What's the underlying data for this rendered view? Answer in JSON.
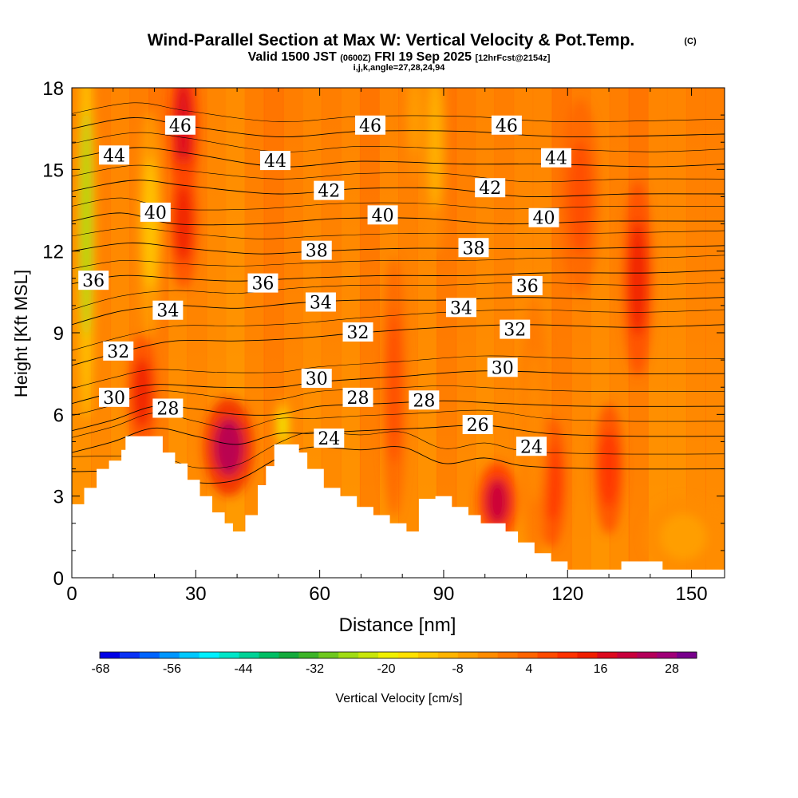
{
  "chart_data": {
    "type": "heatmap",
    "title": "Wind-Parallel Section at Max W: Vertical Velocity & Pot.Temp.",
    "title_mark": "(C)",
    "subtitle": {
      "valid_prefix": "Valid 1500 JST",
      "utc": "(0600Z)",
      "date": "FRI 19 Sep 2025",
      "forecast": "[12hrFcst@2154z]"
    },
    "params": "i,j,k,angle=27,28,24,94",
    "xlabel": "Distance [nm]",
    "ylabel": "Height [Kft MSL]",
    "xlim": [
      0,
      158
    ],
    "ylim": [
      0,
      18
    ],
    "x_ticks": [
      "0",
      "30",
      "60",
      "90",
      "120",
      "150"
    ],
    "y_ticks": [
      "0",
      "3",
      "6",
      "9",
      "12",
      "15",
      "18"
    ],
    "colorbar": {
      "label": "Vertical Velocity [cm/s]",
      "tick_labels": [
        "-68",
        "-56",
        "-44",
        "-32",
        "-20",
        "-8",
        "4",
        "16",
        "28"
      ],
      "colors": [
        "#0000e6",
        "#0a32f5",
        "#0064ff",
        "#0096ff",
        "#00c8ff",
        "#00f0ff",
        "#00e6c8",
        "#00d296",
        "#00be64",
        "#14aa3c",
        "#3cb428",
        "#6ec81e",
        "#a0dc14",
        "#c8e60a",
        "#f0f000",
        "#ffe100",
        "#ffc800",
        "#ffb400",
        "#ffa000",
        "#ff8c00",
        "#ff7800",
        "#ff6400",
        "#ff4b00",
        "#ff3200",
        "#f01e00",
        "#dc0a1e",
        "#c8003c",
        "#b4005a",
        "#a00078",
        "#78008c"
      ]
    },
    "terrain": [
      {
        "x": 0,
        "h": 2.7
      },
      {
        "x": 3,
        "h": 3.3
      },
      {
        "x": 6,
        "h": 4.0
      },
      {
        "x": 9,
        "h": 4.3
      },
      {
        "x": 12,
        "h": 4.7
      },
      {
        "x": 13,
        "h": 5.2
      },
      {
        "x": 17,
        "h": 5.2
      },
      {
        "x": 20,
        "h": 5.2
      },
      {
        "x": 22,
        "h": 4.6
      },
      {
        "x": 25,
        "h": 4.2
      },
      {
        "x": 28,
        "h": 3.6
      },
      {
        "x": 31,
        "h": 3.0
      },
      {
        "x": 34,
        "h": 2.4
      },
      {
        "x": 37,
        "h": 2.0
      },
      {
        "x": 39,
        "h": 1.7
      },
      {
        "x": 42,
        "h": 2.3
      },
      {
        "x": 45,
        "h": 3.4
      },
      {
        "x": 47,
        "h": 4.1
      },
      {
        "x": 49,
        "h": 4.9
      },
      {
        "x": 53,
        "h": 4.9
      },
      {
        "x": 55,
        "h": 4.6
      },
      {
        "x": 57,
        "h": 4.0
      },
      {
        "x": 61,
        "h": 3.3
      },
      {
        "x": 65,
        "h": 3.0
      },
      {
        "x": 69,
        "h": 2.6
      },
      {
        "x": 73,
        "h": 2.3
      },
      {
        "x": 77,
        "h": 2.0
      },
      {
        "x": 81,
        "h": 1.7
      },
      {
        "x": 84,
        "h": 2.9
      },
      {
        "x": 88,
        "h": 3.0
      },
      {
        "x": 92,
        "h": 2.6
      },
      {
        "x": 96,
        "h": 2.3
      },
      {
        "x": 99,
        "h": 2.0
      },
      {
        "x": 105,
        "h": 1.7
      },
      {
        "x": 108,
        "h": 1.3
      },
      {
        "x": 112,
        "h": 0.9
      },
      {
        "x": 116,
        "h": 0.6
      },
      {
        "x": 120,
        "h": 0.3
      },
      {
        "x": 133,
        "h": 0.6
      },
      {
        "x": 143,
        "h": 0.3
      },
      {
        "x": 158,
        "h": 0.3
      }
    ],
    "updrafts": [
      {
        "x": 27,
        "y": 16.5,
        "sx": 3,
        "sy": 2.5,
        "v": 16
      },
      {
        "x": 27,
        "y": 13,
        "sx": 3,
        "sy": 2,
        "v": 12
      },
      {
        "x": 38,
        "y": 4.8,
        "sx": 5,
        "sy": 1.5,
        "v": 22
      },
      {
        "x": 17,
        "y": 6.8,
        "sx": 3,
        "sy": 1.8,
        "v": 13
      },
      {
        "x": 103,
        "y": 2.8,
        "sx": 4,
        "sy": 1.2,
        "v": 18
      },
      {
        "x": 116,
        "y": 3.5,
        "sx": 3,
        "sy": 2,
        "v": 9
      },
      {
        "x": 130,
        "y": 4,
        "sx": 3,
        "sy": 2,
        "v": 10
      },
      {
        "x": 137,
        "y": 11,
        "sx": 3,
        "sy": 3,
        "v": 12
      },
      {
        "x": 78,
        "y": 7,
        "sx": 2.5,
        "sy": 4,
        "v": 7
      },
      {
        "x": 123,
        "y": 14,
        "sx": 4,
        "sy": 3,
        "v": 7
      }
    ],
    "downdrafts": [
      {
        "x": 3.5,
        "y": 13,
        "sx": 1.8,
        "sy": 6,
        "v": -30
      },
      {
        "x": 19,
        "y": 13,
        "sx": 2.5,
        "sy": 3.5,
        "v": -14
      },
      {
        "x": 51,
        "y": 5.6,
        "sx": 1.5,
        "sy": 0.8,
        "v": -22
      },
      {
        "x": 88,
        "y": 16,
        "sx": 2.5,
        "sy": 3.5,
        "v": -12
      },
      {
        "x": 83,
        "y": 17,
        "sx": 2,
        "sy": 2,
        "v": -9
      },
      {
        "x": 148,
        "y": 1.5,
        "sx": 8,
        "sy": 1.2,
        "v": -9
      },
      {
        "x": 112,
        "y": 5.5,
        "sx": 3,
        "sy": 4,
        "v": -6
      }
    ],
    "contours": [
      {
        "theta": 24,
        "points": [
          [
            0,
            3.9
          ],
          [
            20,
            3.9
          ],
          [
            30,
            3.5
          ],
          [
            40,
            3.6
          ],
          [
            50,
            4.4
          ],
          [
            58,
            4.8
          ],
          [
            70,
            4.7
          ],
          [
            80,
            4.8
          ],
          [
            90,
            4.2
          ],
          [
            100,
            4.4
          ],
          [
            110,
            4.1
          ],
          [
            130,
            4.0
          ],
          [
            158,
            4.0
          ]
        ]
      },
      {
        "theta": 26,
        "points": [
          [
            0,
            4.6
          ],
          [
            10,
            5.0
          ],
          [
            20,
            5.5
          ],
          [
            30,
            5.2
          ],
          [
            40,
            4.9
          ],
          [
            50,
            5.3
          ],
          [
            58,
            5.3
          ],
          [
            70,
            5.4
          ],
          [
            85,
            5.5
          ],
          [
            100,
            5.6
          ],
          [
            115,
            5.3
          ],
          [
            135,
            5.2
          ],
          [
            158,
            5.2
          ]
        ]
      },
      {
        "theta": 28,
        "points": [
          [
            0,
            5.4
          ],
          [
            10,
            5.8
          ],
          [
            20,
            6.3
          ],
          [
            30,
            6.2
          ],
          [
            40,
            6.0
          ],
          [
            50,
            6.0
          ],
          [
            60,
            6.3
          ],
          [
            75,
            6.4
          ],
          [
            90,
            6.5
          ],
          [
            105,
            6.4
          ],
          [
            125,
            6.3
          ],
          [
            158,
            6.3
          ]
        ]
      },
      {
        "theta": 30,
        "points": [
          [
            0,
            6.4
          ],
          [
            10,
            6.8
          ],
          [
            20,
            7.1
          ],
          [
            35,
            7.0
          ],
          [
            50,
            7.0
          ],
          [
            60,
            7.2
          ],
          [
            80,
            7.4
          ],
          [
            100,
            7.6
          ],
          [
            125,
            7.5
          ],
          [
            158,
            7.5
          ]
        ]
      },
      {
        "theta": 32,
        "points": [
          [
            0,
            7.8
          ],
          [
            12,
            8.3
          ],
          [
            25,
            8.7
          ],
          [
            40,
            8.7
          ],
          [
            55,
            8.8
          ],
          [
            70,
            9.0
          ],
          [
            90,
            9.2
          ],
          [
            110,
            9.3
          ],
          [
            135,
            9.2
          ],
          [
            158,
            9.3
          ]
        ]
      },
      {
        "theta": 34,
        "points": [
          [
            0,
            9.3
          ],
          [
            12,
            9.8
          ],
          [
            25,
            10.0
          ],
          [
            40,
            9.9
          ],
          [
            55,
            10.1
          ],
          [
            70,
            10.2
          ],
          [
            90,
            10.2
          ],
          [
            110,
            10.3
          ],
          [
            135,
            10.2
          ],
          [
            158,
            10.3
          ]
        ]
      },
      {
        "theta": 36,
        "points": [
          [
            0,
            10.8
          ],
          [
            12,
            11.1
          ],
          [
            25,
            11.0
          ],
          [
            40,
            10.9
          ],
          [
            55,
            11.0
          ],
          [
            75,
            11.1
          ],
          [
            95,
            11.1
          ],
          [
            115,
            11.2
          ],
          [
            140,
            11.2
          ],
          [
            158,
            11.3
          ]
        ]
      },
      {
        "theta": 38,
        "points": [
          [
            0,
            12.0
          ],
          [
            14,
            12.3
          ],
          [
            28,
            12.1
          ],
          [
            45,
            11.9
          ],
          [
            60,
            12.0
          ],
          [
            80,
            12.1
          ],
          [
            100,
            12.1
          ],
          [
            125,
            12.1
          ],
          [
            158,
            12.2
          ]
        ]
      },
      {
        "theta": 40,
        "points": [
          [
            0,
            13.1
          ],
          [
            12,
            13.4
          ],
          [
            25,
            13.0
          ],
          [
            45,
            13.0
          ],
          [
            65,
            13.2
          ],
          [
            85,
            13.2
          ],
          [
            105,
            13.0
          ],
          [
            130,
            13.1
          ],
          [
            158,
            13.1
          ]
        ]
      },
      {
        "theta": 42,
        "points": [
          [
            0,
            14.2
          ],
          [
            15,
            14.6
          ],
          [
            28,
            14.4
          ],
          [
            50,
            14.1
          ],
          [
            70,
            14.3
          ],
          [
            90,
            14.3
          ],
          [
            110,
            14.0
          ],
          [
            135,
            14.1
          ],
          [
            158,
            14.1
          ]
        ]
      },
      {
        "theta": 44,
        "points": [
          [
            0,
            15.4
          ],
          [
            15,
            15.8
          ],
          [
            28,
            15.6
          ],
          [
            50,
            15.1
          ],
          [
            70,
            15.3
          ],
          [
            95,
            15.2
          ],
          [
            115,
            15.2
          ],
          [
            140,
            15.1
          ],
          [
            158,
            15.2
          ]
        ]
      },
      {
        "theta": 46,
        "points": [
          [
            0,
            16.5
          ],
          [
            15,
            16.9
          ],
          [
            28,
            16.6
          ],
          [
            50,
            16.2
          ],
          [
            70,
            16.4
          ],
          [
            95,
            16.4
          ],
          [
            120,
            16.2
          ],
          [
            158,
            16.3
          ]
        ]
      }
    ],
    "contour_labels": [
      {
        "text": "46",
        "x": 22,
        "y": 16.6
      },
      {
        "text": "46",
        "x": 68,
        "y": 16.6
      },
      {
        "text": "46",
        "x": 101,
        "y": 16.6
      },
      {
        "text": "44",
        "x": 6,
        "y": 15.5
      },
      {
        "text": "44",
        "x": 45,
        "y": 15.3
      },
      {
        "text": "44",
        "x": 113,
        "y": 15.4
      },
      {
        "text": "42",
        "x": 58,
        "y": 14.2
      },
      {
        "text": "42",
        "x": 97,
        "y": 14.3
      },
      {
        "text": "40",
        "x": 16,
        "y": 13.4
      },
      {
        "text": "40",
        "x": 71,
        "y": 13.3
      },
      {
        "text": "40",
        "x": 110,
        "y": 13.2
      },
      {
        "text": "38",
        "x": 55,
        "y": 12.0
      },
      {
        "text": "38",
        "x": 93,
        "y": 12.1
      },
      {
        "text": "36",
        "x": 1,
        "y": 10.9
      },
      {
        "text": "36",
        "x": 42,
        "y": 10.8
      },
      {
        "text": "36",
        "x": 106,
        "y": 10.7
      },
      {
        "text": "34",
        "x": 19,
        "y": 9.8
      },
      {
        "text": "34",
        "x": 56,
        "y": 10.1
      },
      {
        "text": "34",
        "x": 90,
        "y": 9.9
      },
      {
        "text": "32",
        "x": 7,
        "y": 8.3
      },
      {
        "text": "32",
        "x": 65,
        "y": 9.0
      },
      {
        "text": "32",
        "x": 103,
        "y": 9.1
      },
      {
        "text": "30",
        "x": 6,
        "y": 6.6
      },
      {
        "text": "30",
        "x": 55,
        "y": 7.3
      },
      {
        "text": "30",
        "x": 100,
        "y": 7.7
      },
      {
        "text": "28",
        "x": 19,
        "y": 6.2
      },
      {
        "text": "28",
        "x": 65,
        "y": 6.6
      },
      {
        "text": "28",
        "x": 81,
        "y": 6.5
      },
      {
        "text": "26",
        "x": 94,
        "y": 5.6
      },
      {
        "text": "24",
        "x": 58,
        "y": 5.1
      },
      {
        "text": "24",
        "x": 107,
        "y": 4.8
      }
    ]
  }
}
